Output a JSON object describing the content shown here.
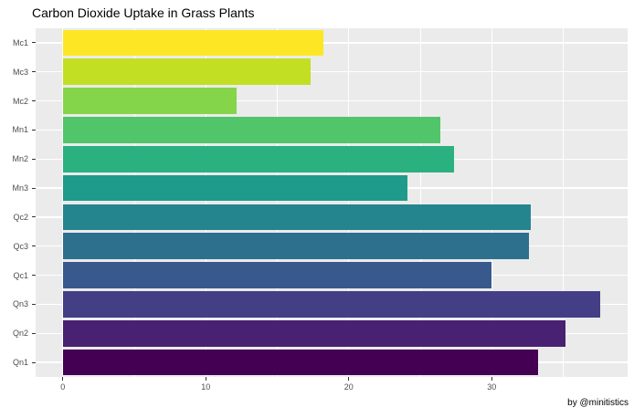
{
  "chart_data": {
    "type": "bar",
    "orientation": "horizontal",
    "title": "Carbon Dioxide Uptake in Grass Plants",
    "caption": "by @minitistics",
    "xlabel": "",
    "ylabel": "",
    "legend": "none",
    "grid": true,
    "categories": [
      "Mc1",
      "Mc3",
      "Mc2",
      "Mn1",
      "Mn2",
      "Mn3",
      "Qc2",
      "Qc3",
      "Qc1",
      "Qn3",
      "Qn2",
      "Qn1"
    ],
    "values": [
      18.2,
      17.3,
      12.14,
      26.4,
      27.34,
      24.12,
      32.7,
      32.59,
      29.97,
      37.61,
      35.16,
      33.23
    ],
    "bar_colors": [
      "#FDE725",
      "#C2DF23",
      "#85D54A",
      "#51C56A",
      "#2BB07F",
      "#1E9B8A",
      "#25858E",
      "#2D708E",
      "#38598C",
      "#433E85",
      "#482173",
      "#440154"
    ],
    "x_axis": {
      "major_ticks": [
        0,
        10,
        20,
        30
      ],
      "minor_ticks": [
        5,
        15,
        25,
        35
      ],
      "range": [
        -1.9,
        39.5
      ]
    },
    "style": {
      "panel_bg": "#EBEBEB",
      "gridline_color": "#FFFFFF",
      "tick_label_color": "#4D4D4D",
      "axis_tick_color": "#333333",
      "title_color": "#000000",
      "caption_color": "#000000"
    }
  }
}
